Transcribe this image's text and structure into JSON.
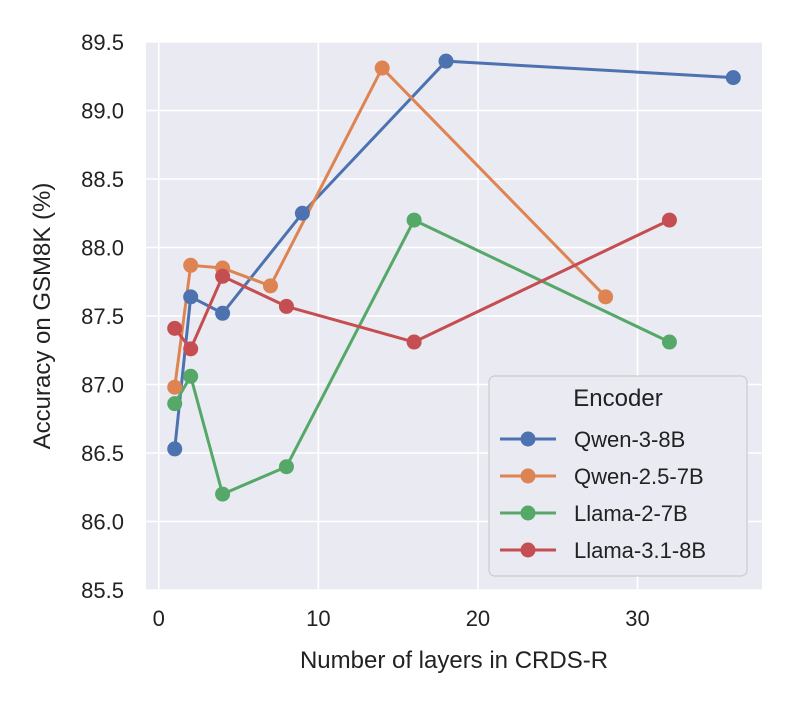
{
  "chart_data": {
    "type": "line",
    "title": "",
    "xlabel": "Number of layers in CRDS-R",
    "ylabel": "Accuracy on GSM8K (%)",
    "xlim": [
      -0.8,
      37.8
    ],
    "ylim": [
      85.5,
      89.5
    ],
    "xticks": [
      0,
      10,
      20,
      30
    ],
    "yticks": [
      85.5,
      86.0,
      86.5,
      87.0,
      87.5,
      88.0,
      88.5,
      89.0,
      89.5
    ],
    "xtick_labels": [
      "0",
      "10",
      "20",
      "30"
    ],
    "ytick_labels": [
      "85.5",
      "86.0",
      "86.5",
      "87.0",
      "87.5",
      "88.0",
      "88.5",
      "89.0",
      "89.5"
    ],
    "grid": true,
    "legend": {
      "title": "Encoder",
      "position": "lower-right"
    },
    "series": [
      {
        "name": "Qwen-3-8B",
        "color": "#4c72b0",
        "x": [
          1,
          2,
          4,
          9,
          18,
          36
        ],
        "y": [
          86.53,
          87.64,
          87.52,
          88.25,
          89.36,
          89.24
        ]
      },
      {
        "name": "Qwen-2.5-7B",
        "color": "#dd8452",
        "x": [
          1,
          2,
          4,
          7,
          14,
          28
        ],
        "y": [
          86.98,
          87.87,
          87.85,
          87.72,
          89.31,
          87.64
        ]
      },
      {
        "name": "Llama-2-7B",
        "color": "#55a868",
        "x": [
          1,
          2,
          4,
          8,
          16,
          32
        ],
        "y": [
          86.86,
          87.06,
          86.2,
          86.4,
          88.2,
          87.31
        ]
      },
      {
        "name": "Llama-3.1-8B",
        "color": "#c44e52",
        "x": [
          1,
          2,
          4,
          8,
          16,
          32
        ],
        "y": [
          87.41,
          87.26,
          87.79,
          87.57,
          87.31,
          88.2
        ]
      }
    ]
  }
}
